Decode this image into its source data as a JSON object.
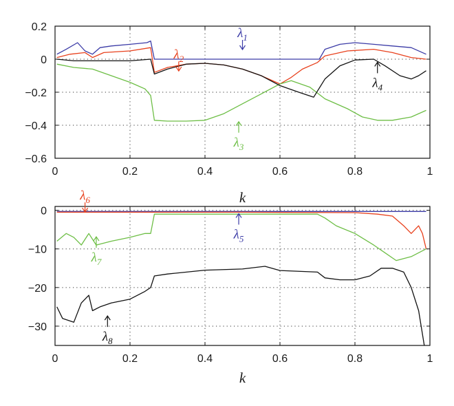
{
  "colors": {
    "blue": "#3a3aa6",
    "red": "#e8401c",
    "black": "#111111",
    "green": "#6dbe45"
  },
  "chart_data": [
    {
      "type": "line",
      "grid": true,
      "xlabel": "k",
      "xlim": [
        0,
        1
      ],
      "ylim": [
        -0.6,
        0.2
      ],
      "xticks": [
        0,
        0.2,
        0.4,
        0.6,
        0.8,
        1
      ],
      "xtick_labels": [
        "0",
        "0.2",
        "0.4",
        "0.6",
        "0.8",
        "1"
      ],
      "yticks": [
        0.2,
        0,
        -0.2,
        -0.4,
        -0.6
      ],
      "ytick_labels": [
        "0.2",
        "0",
        "−0.2",
        "−0.4",
        "−0.6"
      ],
      "series": [
        {
          "name": "λ1",
          "color": "blue",
          "points": [
            [
              0.005,
              0.03
            ],
            [
              0.03,
              0.06
            ],
            [
              0.06,
              0.1
            ],
            [
              0.08,
              0.05
            ],
            [
              0.1,
              0.03
            ],
            [
              0.12,
              0.07
            ],
            [
              0.15,
              0.08
            ],
            [
              0.2,
              0.09
            ],
            [
              0.245,
              0.1
            ],
            [
              0.255,
              0.11
            ],
            [
              0.265,
              0
            ],
            [
              0.4,
              0
            ],
            [
              0.6,
              0
            ],
            [
              0.705,
              0
            ],
            [
              0.72,
              0.06
            ],
            [
              0.76,
              0.09
            ],
            [
              0.8,
              0.1
            ],
            [
              0.85,
              0.09
            ],
            [
              0.9,
              0.08
            ],
            [
              0.95,
              0.07
            ],
            [
              0.99,
              0.03
            ]
          ]
        },
        {
          "name": "λ2",
          "color": "red",
          "points": [
            [
              0.005,
              0.01
            ],
            [
              0.04,
              0.03
            ],
            [
              0.08,
              0.04
            ],
            [
              0.1,
              0.01
            ],
            [
              0.13,
              0.04
            ],
            [
              0.2,
              0.05
            ],
            [
              0.255,
              0.07
            ],
            [
              0.265,
              -0.08
            ],
            [
              0.3,
              -0.05
            ],
            [
              0.35,
              -0.03
            ],
            [
              0.4,
              -0.025
            ],
            [
              0.45,
              -0.035
            ],
            [
              0.5,
              -0.06
            ],
            [
              0.55,
              -0.1
            ],
            [
              0.6,
              -0.15
            ],
            [
              0.63,
              -0.11
            ],
            [
              0.66,
              -0.06
            ],
            [
              0.7,
              -0.02
            ],
            [
              0.72,
              0.02
            ],
            [
              0.78,
              0.05
            ],
            [
              0.85,
              0.06
            ],
            [
              0.9,
              0.04
            ],
            [
              0.95,
              0.01
            ],
            [
              0.99,
              0
            ]
          ]
        },
        {
          "name": "λ3",
          "color": "green",
          "points": [
            [
              0.005,
              -0.03
            ],
            [
              0.05,
              -0.05
            ],
            [
              0.1,
              -0.06
            ],
            [
              0.15,
              -0.1
            ],
            [
              0.2,
              -0.14
            ],
            [
              0.24,
              -0.18
            ],
            [
              0.255,
              -0.22
            ],
            [
              0.265,
              -0.37
            ],
            [
              0.3,
              -0.375
            ],
            [
              0.35,
              -0.375
            ],
            [
              0.4,
              -0.37
            ],
            [
              0.45,
              -0.33
            ],
            [
              0.5,
              -0.27
            ],
            [
              0.55,
              -0.21
            ],
            [
              0.6,
              -0.15
            ],
            [
              0.63,
              -0.13
            ],
            [
              0.68,
              -0.17
            ],
            [
              0.72,
              -0.24
            ],
            [
              0.78,
              -0.3
            ],
            [
              0.82,
              -0.35
            ],
            [
              0.86,
              -0.37
            ],
            [
              0.9,
              -0.37
            ],
            [
              0.95,
              -0.35
            ],
            [
              0.99,
              -0.31
            ]
          ]
        },
        {
          "name": "λ4",
          "color": "black",
          "points": [
            [
              0.005,
              0
            ],
            [
              0.05,
              -0.01
            ],
            [
              0.1,
              -0.01
            ],
            [
              0.2,
              -0.01
            ],
            [
              0.255,
              0
            ],
            [
              0.265,
              -0.09
            ],
            [
              0.3,
              -0.06
            ],
            [
              0.35,
              -0.03
            ],
            [
              0.4,
              -0.025
            ],
            [
              0.45,
              -0.035
            ],
            [
              0.5,
              -0.06
            ],
            [
              0.55,
              -0.1
            ],
            [
              0.6,
              -0.16
            ],
            [
              0.65,
              -0.2
            ],
            [
              0.69,
              -0.23
            ],
            [
              0.72,
              -0.12
            ],
            [
              0.76,
              -0.04
            ],
            [
              0.8,
              -0.005
            ],
            [
              0.85,
              0
            ],
            [
              0.88,
              -0.04
            ],
            [
              0.92,
              -0.1
            ],
            [
              0.95,
              -0.12
            ],
            [
              0.97,
              -0.1
            ],
            [
              0.99,
              -0.07
            ]
          ]
        }
      ],
      "annotations": [
        {
          "base": "λ",
          "sub": "1",
          "color": "blue",
          "x": 0.5,
          "y": 0.05
        },
        {
          "base": "λ",
          "sub": "2",
          "color": "red",
          "x": 0.33,
          "y": -0.08
        },
        {
          "base": "λ",
          "sub": "3",
          "color": "green",
          "x": 0.49,
          "y": -0.37
        },
        {
          "base": "λ",
          "sub": "4",
          "color": "black",
          "x": 0.86,
          "y": -0.01
        }
      ]
    },
    {
      "type": "line",
      "grid": true,
      "xlabel": "k",
      "xlim": [
        0,
        1
      ],
      "ylim": [
        -35,
        1
      ],
      "xticks": [
        0,
        0.2,
        0.4,
        0.6,
        0.8,
        1
      ],
      "xtick_labels": [
        "0",
        "0.2",
        "0.4",
        "0.6",
        "0.8",
        "1"
      ],
      "yticks": [
        0,
        -10,
        -20,
        -30
      ],
      "ytick_labels": [
        "0",
        "−10",
        "−20",
        "−30"
      ],
      "series": [
        {
          "name": "λ5",
          "color": "blue",
          "points": [
            [
              0.005,
              -0.3
            ],
            [
              0.5,
              -0.3
            ],
            [
              0.99,
              -0.3
            ]
          ]
        },
        {
          "name": "λ6",
          "color": "red",
          "points": [
            [
              0.005,
              -0.5
            ],
            [
              0.5,
              -0.5
            ],
            [
              0.8,
              -0.6
            ],
            [
              0.86,
              -1
            ],
            [
              0.9,
              -1.5
            ],
            [
              0.93,
              -4
            ],
            [
              0.95,
              -6
            ],
            [
              0.97,
              -4
            ],
            [
              0.98,
              -6
            ],
            [
              0.99,
              -10
            ]
          ]
        },
        {
          "name": "λ7",
          "color": "green",
          "points": [
            [
              0.005,
              -8
            ],
            [
              0.03,
              -6
            ],
            [
              0.05,
              -7
            ],
            [
              0.07,
              -9
            ],
            [
              0.09,
              -6
            ],
            [
              0.11,
              -9
            ],
            [
              0.15,
              -8
            ],
            [
              0.2,
              -7
            ],
            [
              0.24,
              -6
            ],
            [
              0.255,
              -6
            ],
            [
              0.265,
              -1
            ],
            [
              0.4,
              -1
            ],
            [
              0.6,
              -1
            ],
            [
              0.7,
              -1
            ],
            [
              0.72,
              -2
            ],
            [
              0.75,
              -4
            ],
            [
              0.8,
              -6
            ],
            [
              0.85,
              -9
            ],
            [
              0.88,
              -11
            ],
            [
              0.91,
              -13
            ],
            [
              0.95,
              -12
            ],
            [
              0.99,
              -10
            ]
          ]
        },
        {
          "name": "λ8",
          "color": "black",
          "points": [
            [
              0.005,
              -25
            ],
            [
              0.02,
              -28
            ],
            [
              0.05,
              -29
            ],
            [
              0.07,
              -24
            ],
            [
              0.09,
              -22
            ],
            [
              0.1,
              -26
            ],
            [
              0.12,
              -25
            ],
            [
              0.15,
              -24
            ],
            [
              0.2,
              -23
            ],
            [
              0.24,
              -21
            ],
            [
              0.255,
              -20
            ],
            [
              0.265,
              -17
            ],
            [
              0.3,
              -16.5
            ],
            [
              0.4,
              -15.5
            ],
            [
              0.5,
              -15.2
            ],
            [
              0.56,
              -14.5
            ],
            [
              0.6,
              -15.6
            ],
            [
              0.7,
              -16
            ],
            [
              0.72,
              -17.5
            ],
            [
              0.76,
              -18
            ],
            [
              0.8,
              -18
            ],
            [
              0.84,
              -17
            ],
            [
              0.87,
              -15
            ],
            [
              0.9,
              -15
            ],
            [
              0.93,
              -16
            ],
            [
              0.95,
              -20
            ],
            [
              0.97,
              -26
            ],
            [
              0.985,
              -35
            ]
          ]
        }
      ],
      "annotations": [
        {
          "base": "λ",
          "sub": "5",
          "color": "blue",
          "x": 0.49,
          "y": -0.5
        },
        {
          "base": "λ",
          "sub": "6",
          "color": "red",
          "x": 0.08,
          "y": -0.8
        },
        {
          "base": "λ",
          "sub": "7",
          "color": "green",
          "x": 0.11,
          "y": -6.5
        },
        {
          "base": "λ",
          "sub": "8",
          "color": "black",
          "x": 0.14,
          "y": -27
        }
      ]
    }
  ]
}
